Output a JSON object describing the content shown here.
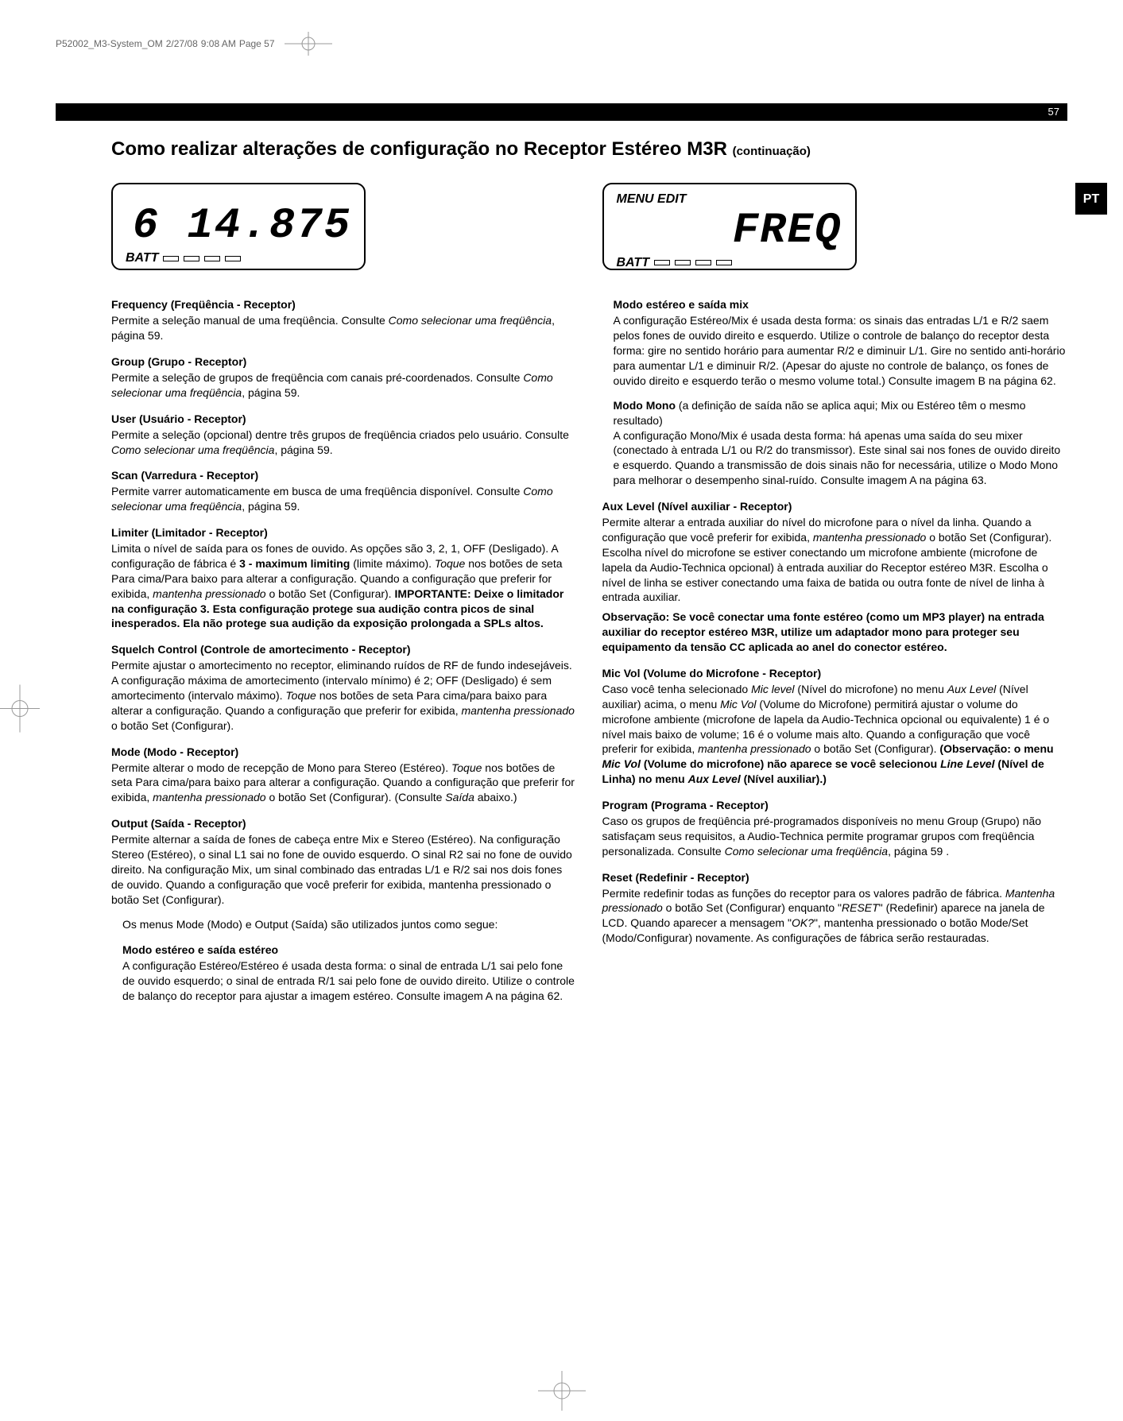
{
  "header": {
    "filename": "P52002_M3-System_OM",
    "date": "2/27/08",
    "time": "9:08 AM",
    "pagelabel": "Page 57"
  },
  "page_number": "57",
  "lang_tab": "PT",
  "title": "Como realizar alterações de configuração no Receptor Estéreo M3R",
  "title_cont": "(continuação)",
  "lcd": {
    "left": {
      "digits": "6 14.875",
      "batt": "BATT"
    },
    "right": {
      "menu": "MENU EDIT",
      "digits": "FREQ",
      "batt": "BATT"
    }
  },
  "left_sections": [
    {
      "h": "Frequency (Freqüência - Receptor)",
      "p": "Permite a seleção manual de uma freqüência. Consulte <em>Como selecionar uma freqüência</em>, página 59."
    },
    {
      "h": "Group (Grupo - Receptor)",
      "p": "Permite a seleção de grupos de freqüência com canais pré-coordenados. Consulte <em>Como selecionar uma freqüência</em>, página 59."
    },
    {
      "h": "User (Usuário - Receptor)",
      "p": "Permite a seleção (opcional) dentre três grupos de freqüência criados pelo usuário. Consulte <em>Como selecionar uma freqüência</em>, página 59."
    },
    {
      "h": "Scan (Varredura - Receptor)",
      "p": "Permite varrer automaticamente em busca de uma freqüência disponível. Consulte <em>Como selecionar uma freqüência</em>, página 59."
    },
    {
      "h": "Limiter (Limitador - Receptor)",
      "p": "Limita o nível de saída para os fones de ouvido.  As opções são 3, 2, 1, OFF (Desligado). A configuração de fábrica é <b>3 - maximum limiting</b> (limite máximo). <em>Toque</em> nos botões de seta Para cima/Para baixo para alterar a configuração. Quando a configuração que preferir for exibida, <em>mantenha pressionado</em> o botão Set (Configurar). <b>IMPORTANTE: Deixe o limitador na configuração 3. Esta configuração protege sua audição contra picos de sinal inesperados. Ela não protege sua audição da exposição prolongada a SPLs altos.</b>"
    },
    {
      "h": "Squelch Control (Controle de amortecimento - Receptor)",
      "p": "Permite ajustar o amortecimento no receptor, eliminando ruídos de RF de fundo indesejáveis. A configuração máxima de amortecimento (intervalo mínimo) é 2; OFF (Desligado) é sem amortecimento (intervalo máximo). <em>Toque</em> nos botões de seta Para cima/para baixo para alterar a configuração. Quando a configuração que preferir for exibida, <em>mantenha pressionado</em> o botão Set (Configurar)."
    },
    {
      "h": "Mode (Modo - Receptor)",
      "p": "Permite alterar o modo de recepção de Mono para Stereo (Estéreo). <em>Toque</em> nos botões de seta Para cima/para baixo para alterar a configuração. Quando a configuração que preferir for exibida, <em>mantenha pressionado</em> o botão Set (Configurar). (Consulte <em>Saída</em> abaixo.)"
    },
    {
      "h": "Output (Saída - Receptor)",
      "p": "Permite alternar a saída de fones de cabeça entre Mix e Stereo (Estéreo). Na configuração Stereo (Estéreo), o sinal L1 sai no fone de ouvido esquerdo. O sinal R2 sai no fone de ouvido direito. Na configuração Mix, um sinal combinado das entradas L/1 e R/2 sai nos dois fones de ouvido. Quando a configuração que você preferir for exibida, mantenha pressionado o botão Set (Configurar).",
      "sub": "Os menus Mode (Modo) e Output (Saída) são utilizados juntos como segue:"
    },
    {
      "h": "Modo estéreo e saída estéreo",
      "p": "A configuração Estéreo/Estéreo é usada desta forma: o sinal de entrada L/1 sai pelo fone de ouvido esquerdo; o sinal de entrada R/1 sai pelo fone de ouvido direito. Utilize o controle de balanço do receptor para ajustar a imagem estéreo. Consulte imagem A na página 62.",
      "indent": true
    }
  ],
  "right_sections": [
    {
      "h": "Modo estéreo e saída mix",
      "p": "A configuração Estéreo/Mix é usada desta forma: os sinais das entradas L/1 e R/2 saem pelos fones de ouvido direito e esquerdo. Utilize o controle de balanço do receptor desta forma: gire no sentido horário para aumentar R/2 e diminuir L/1. Gire no sentido anti-horário para aumentar L/1 e diminuir R/2. (Apesar do ajuste no controle de balanço, os fones de ouvido direito e esquerdo terão o mesmo volume total.) Consulte imagem B na página 62.",
      "sub2": "<b>Modo Mono</b> (a definição de saída não se aplica aqui; Mix ou Estéreo têm o mesmo resultado)<br>A configuração Mono/Mix é usada desta forma: há apenas uma saída do seu mixer (conectado à entrada L/1 ou R/2 do transmissor). Este sinal sai nos fones de ouvido direito e esquerdo. Quando a transmissão de dois sinais não for necessária, utilize o Modo Mono para melhorar o desempenho sinal-ruído. Consulte imagem A na página 63.",
      "indent": true
    },
    {
      "h": "Aux Level (Nível auxiliar - Receptor)",
      "p": "Permite alterar a entrada auxiliar do nível do microfone para o nível da linha. Quando a configuração que você preferir for exibida, <em>mantenha pressionado</em> o botão Set (Configurar). Escolha nível do microfone se estiver conectando um microfone ambiente (microfone de lapela da Audio-Technica opcional) à entrada auxiliar do Receptor estéreo M3R. Escolha o nível de linha se estiver conectando uma faixa de batida ou outra fonte de nível de linha à entrada auxiliar.",
      "obs": "<b>Observação: Se você conectar uma fonte estéreo (como um MP3 player) na entrada auxiliar do receptor estéreo M3R, utilize um adaptador mono para proteger seu equipamento da tensão CC aplicada ao anel do conector estéreo.</b>"
    },
    {
      "h": "Mic Vol (Volume do Microfone - Receptor)",
      "p": "Caso você tenha selecionado <em>Mic level</em> (Nível do microfone) no menu <em>Aux Level</em> (Nível auxiliar) acima, o menu <em>Mic Vol</em> (Volume do Microfone) permitirá ajustar o volume do microfone ambiente (microfone de lapela da Audio-Technica opcional ou equivalente) 1 é o nível mais baixo de volume; 16 é o volume mais alto. Quando a configuração que você preferir for exibida, <em>mantenha pressionado</em> o botão Set (Configurar). <b>(Observação: o menu <em>Mic Vol</em> (Volume do microfone) não aparece se você selecionou <em>Line Level</em> (Nível de Linha) no menu <em>Aux Level</em> (Nível auxiliar).)</b>"
    },
    {
      "h": "Program (Programa - Receptor)",
      "p": "Caso os grupos de freqüência pré-programados disponíveis no menu Group (Grupo) não satisfaçam seus requisitos, a Audio-Technica permite programar grupos com freqüência personalizada. Consulte <em>Como selecionar uma freqüência</em>, página 59 ."
    },
    {
      "h": "Reset (Redefinir - Receptor)",
      "p": "Permite redefinir todas as funções do receptor para os valores padrão de fábrica. <em>Mantenha pressionado</em> o botão Set (Configurar) enquanto \"<em>RESET</em>\" (Redefinir) aparece na janela de LCD. Quando aparecer a mensagem \"<em>OK?</em>\", mantenha pressionado o botão Mode/Set (Modo/Configurar) novamente. As configurações de fábrica serão restauradas."
    }
  ]
}
